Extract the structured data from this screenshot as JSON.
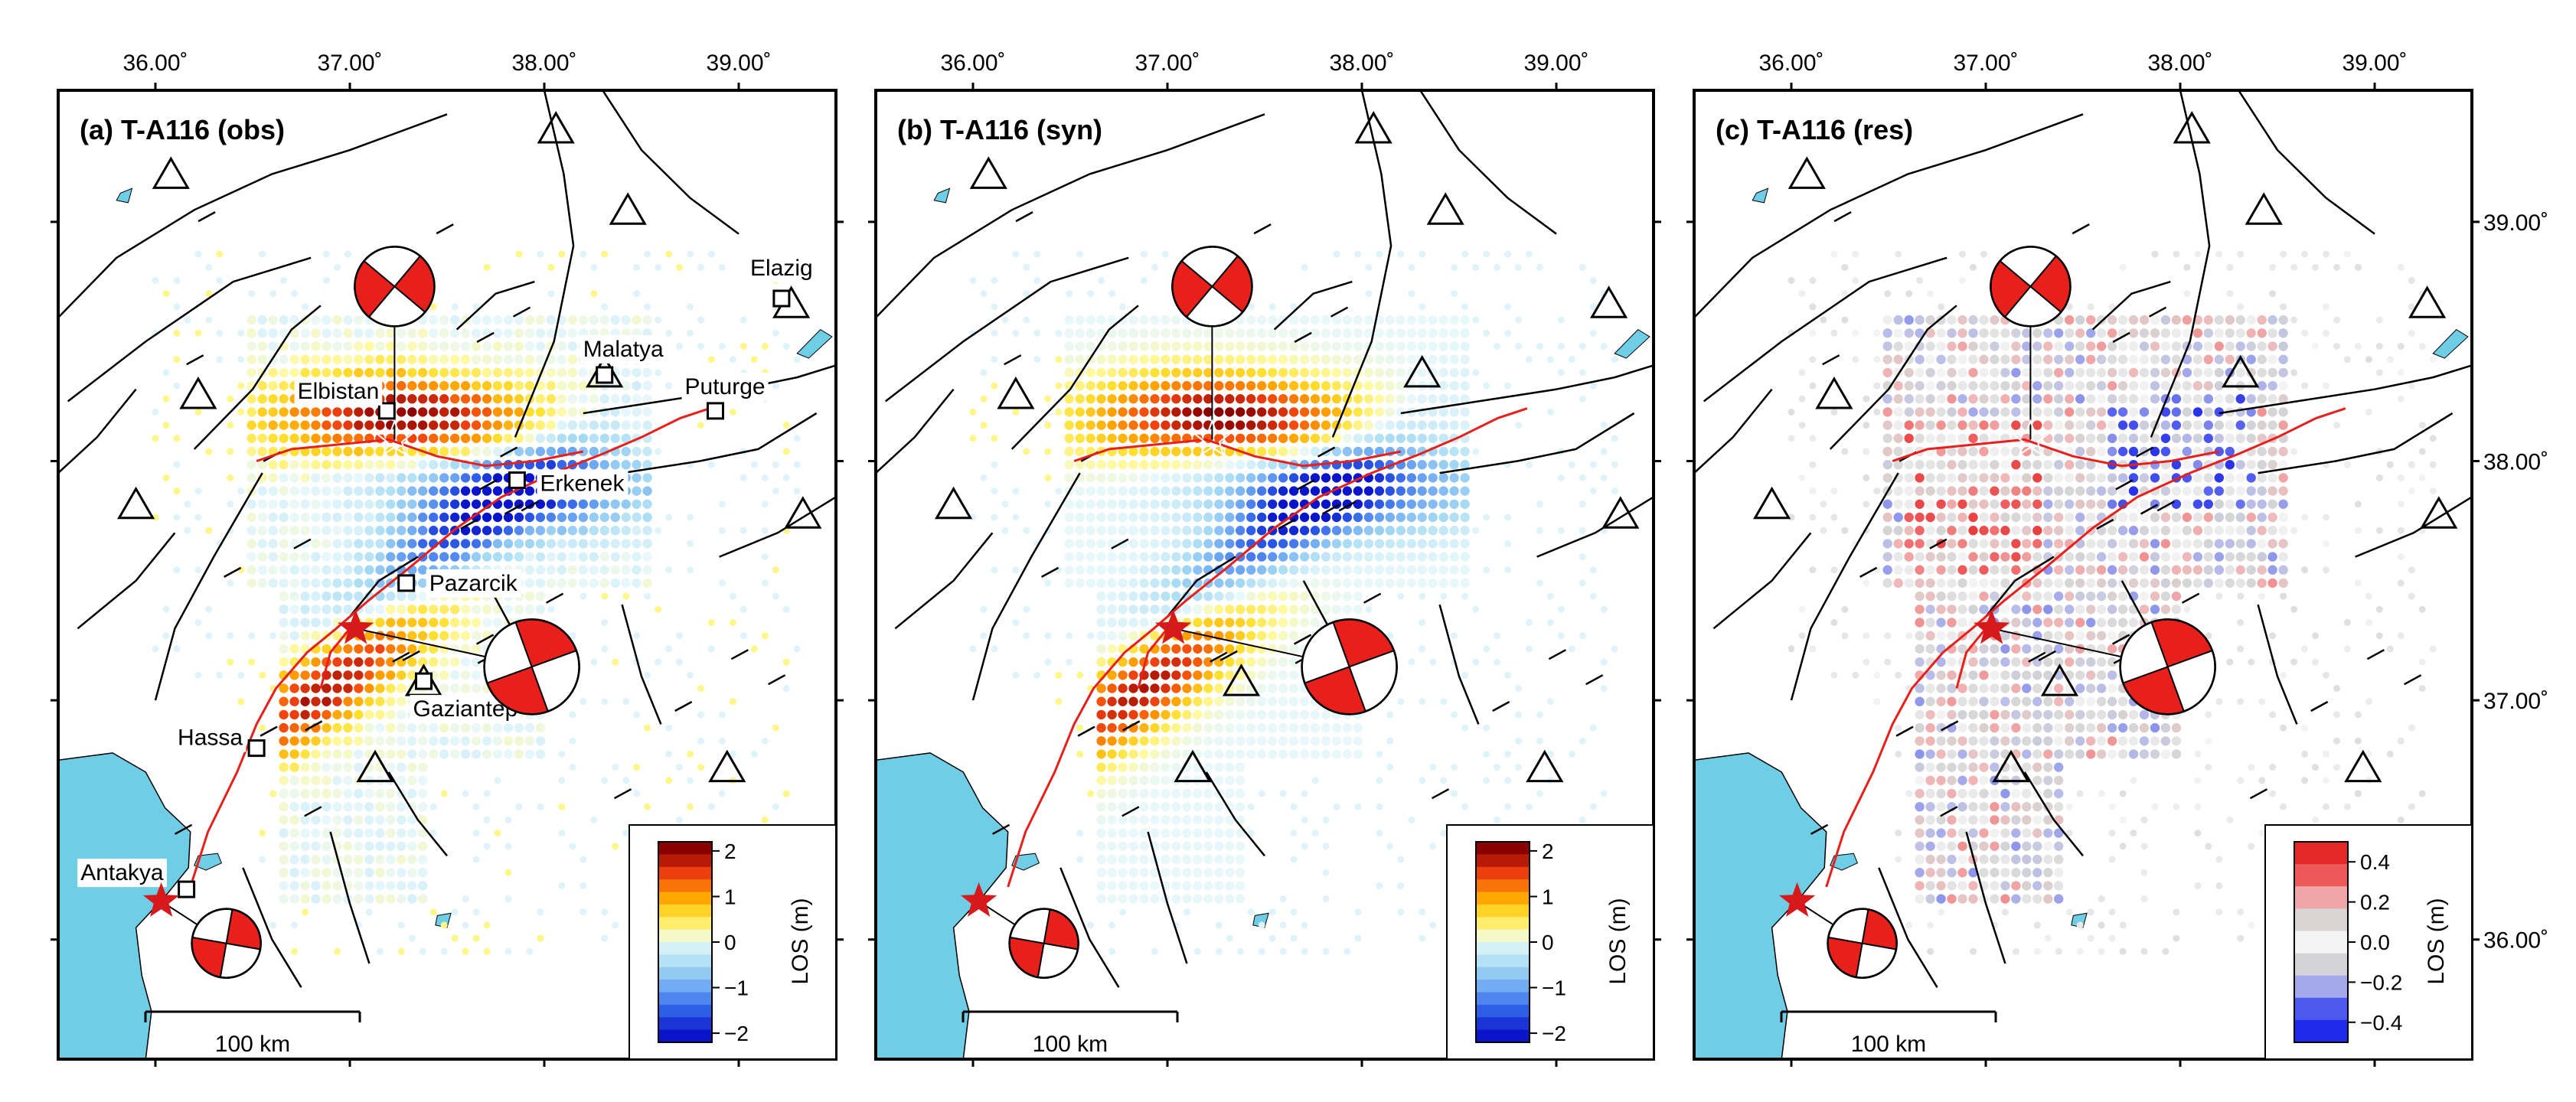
{
  "figure": {
    "lon_ticks": [
      "36.00˚",
      "37.00˚",
      "38.00˚",
      "39.00˚"
    ],
    "lat_ticks": [
      "39.00˚",
      "38.00˚",
      "37.00˚",
      "36.00˚"
    ],
    "scale_label": "100 km",
    "colors": {
      "sea": "#6fcde6",
      "fault": "#000000",
      "rupture": "#e8201c",
      "epicenter": "#d7191c",
      "frame": "#000000"
    }
  },
  "panels": [
    {
      "id": "a",
      "title": "(a) T-A116 (obs)",
      "kind": "los",
      "colorbar": {
        "label": "LOS (m)",
        "tick_labels": [
          "2",
          "1",
          "0",
          "−1",
          "−2"
        ],
        "tick_values": [
          2,
          1,
          0,
          -1,
          -2
        ]
      },
      "show_cities": true
    },
    {
      "id": "b",
      "title": "(b) T-A116 (syn)",
      "kind": "los",
      "colorbar": {
        "label": "LOS (m)",
        "tick_labels": [
          "2",
          "1",
          "0",
          "−1",
          "−2"
        ],
        "tick_values": [
          2,
          1,
          0,
          -1,
          -2
        ]
      },
      "show_cities": false
    },
    {
      "id": "c",
      "title": "(c) T-A116 (res)",
      "kind": "res",
      "colorbar": {
        "label": "LOS (m)",
        "tick_labels": [
          "0.4",
          "0.2",
          "0.0",
          "−0.2",
          "−0.4"
        ],
        "tick_values": [
          0.4,
          0.2,
          0.0,
          -0.2,
          -0.4
        ]
      },
      "show_cities": false
    }
  ],
  "cities": [
    {
      "name": "Elazig",
      "lon": 39.22,
      "lat": 38.68
    },
    {
      "name": "Malatya",
      "lon": 38.31,
      "lat": 38.36
    },
    {
      "name": "Elbistan",
      "lon": 37.19,
      "lat": 38.21
    },
    {
      "name": "Puturge",
      "lon": 38.88,
      "lat": 38.21
    },
    {
      "name": "Erkenek",
      "lon": 37.86,
      "lat": 37.92
    },
    {
      "name": "Pazarcik",
      "lon": 37.29,
      "lat": 37.49
    },
    {
      "name": "Gaziantep",
      "lon": 37.38,
      "lat": 37.08
    },
    {
      "name": "Hassa",
      "lon": 36.52,
      "lat": 36.8
    },
    {
      "name": "Antakya",
      "lon": 36.16,
      "lat": 36.21
    }
  ],
  "epicenters": [
    {
      "lon": 37.03,
      "lat": 37.3,
      "mainshock": true
    },
    {
      "lon": 37.23,
      "lat": 38.09,
      "mainshock": false
    },
    {
      "lon": 36.03,
      "lat": 36.16,
      "mainshock": true
    }
  ],
  "stations": [
    {
      "lon": 36.08,
      "lat": 39.2
    },
    {
      "lon": 37.27,
      "lat": 38.75
    },
    {
      "lon": 38.06,
      "lat": 39.39
    },
    {
      "lon": 38.43,
      "lat": 39.05
    },
    {
      "lon": 39.27,
      "lat": 38.66
    },
    {
      "lon": 38.31,
      "lat": 38.37
    },
    {
      "lon": 36.22,
      "lat": 38.28
    },
    {
      "lon": 35.9,
      "lat": 37.82
    },
    {
      "lon": 39.33,
      "lat": 37.78
    },
    {
      "lon": 37.38,
      "lat": 37.08
    },
    {
      "lon": 37.13,
      "lat": 36.72
    },
    {
      "lon": 38.94,
      "lat": 36.72
    }
  ]
}
